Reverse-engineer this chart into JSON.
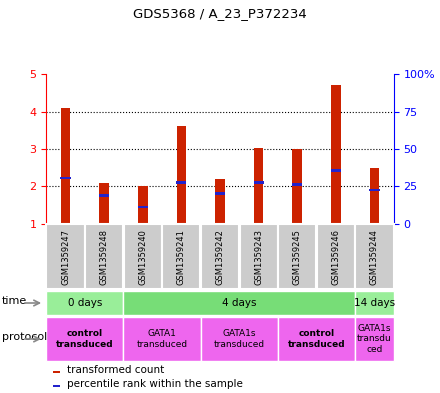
{
  "title": "GDS5368 / A_23_P372234",
  "samples": [
    "GSM1359247",
    "GSM1359248",
    "GSM1359240",
    "GSM1359241",
    "GSM1359242",
    "GSM1359243",
    "GSM1359245",
    "GSM1359246",
    "GSM1359244"
  ],
  "bar_tops": [
    4.1,
    2.1,
    2.0,
    3.62,
    2.2,
    3.03,
    3.0,
    4.7,
    2.5
  ],
  "blue_vals": [
    2.22,
    1.75,
    1.45,
    2.1,
    1.8,
    2.1,
    2.05,
    2.42,
    1.9
  ],
  "ylim": [
    1,
    5
  ],
  "yticks_left": [
    1,
    2,
    3,
    4,
    5
  ],
  "y_right_labels": [
    "0",
    "25",
    "50",
    "75",
    "100%"
  ],
  "bar_color": "#cc2200",
  "blue_color": "#2222cc",
  "time_groups": [
    {
      "label": "0 days",
      "start": 0,
      "end": 2,
      "color": "#99ee99"
    },
    {
      "label": "4 days",
      "start": 2,
      "end": 8,
      "color": "#77dd77"
    },
    {
      "label": "14 days",
      "start": 8,
      "end": 9,
      "color": "#99ee99"
    }
  ],
  "protocol_groups": [
    {
      "label": "control\ntransduced",
      "start": 0,
      "end": 2,
      "bold": true
    },
    {
      "label": "GATA1\ntransduced",
      "start": 2,
      "end": 4,
      "bold": false
    },
    {
      "label": "GATA1s\ntransduced",
      "start": 4,
      "end": 6,
      "bold": false
    },
    {
      "label": "control\ntransduced",
      "start": 6,
      "end": 8,
      "bold": true
    },
    {
      "label": "GATA1s\ntransdu\nced",
      "start": 8,
      "end": 9,
      "bold": false
    }
  ],
  "protocol_color": "#ee66ee",
  "sample_bg_color": "#cccccc",
  "legend_red_label": "transformed count",
  "legend_blue_label": "percentile rank within the sample",
  "bar_width": 0.25
}
